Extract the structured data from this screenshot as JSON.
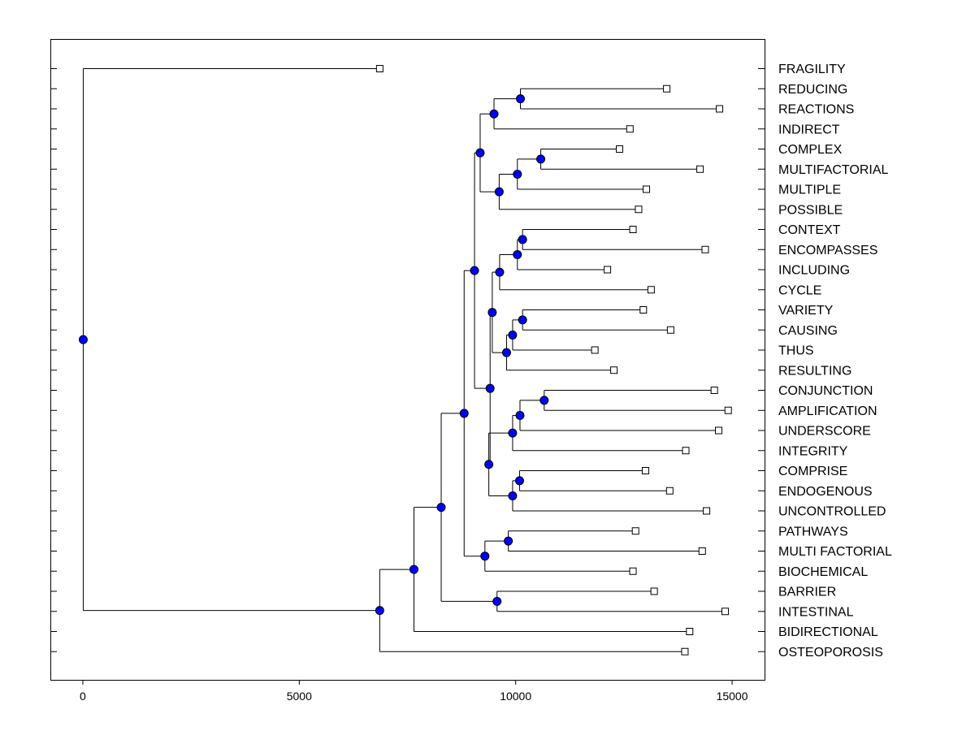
{
  "chart_data": {
    "type": "dendrogram",
    "orientation": "horizontal",
    "xlim": [
      -750,
      15750
    ],
    "xticks": [
      0,
      5000,
      10000,
      15000
    ],
    "colors": {
      "node": "#0000ff",
      "leaf": "#ffffff",
      "line": "#000000"
    },
    "leaves": [
      {
        "label": "FRAGILITY",
        "x": 6850
      },
      {
        "label": "REDUCING",
        "x": 13480
      },
      {
        "label": "REACTIONS",
        "x": 14700
      },
      {
        "label": "INDIRECT",
        "x": 12630
      },
      {
        "label": "COMPLEX",
        "x": 12390
      },
      {
        "label": "MULTIFACTORIAL",
        "x": 14250
      },
      {
        "label": "MULTIPLE",
        "x": 13010
      },
      {
        "label": "POSSIBLE",
        "x": 12830
      },
      {
        "label": "CONTEXT",
        "x": 12700
      },
      {
        "label": "ENCOMPASSES",
        "x": 14370
      },
      {
        "label": "INCLUDING",
        "x": 12110
      },
      {
        "label": "CYCLE",
        "x": 13120
      },
      {
        "label": "VARIETY",
        "x": 12940
      },
      {
        "label": "CAUSING",
        "x": 13570
      },
      {
        "label": "THUS",
        "x": 11820
      },
      {
        "label": "RESULTING",
        "x": 12260
      },
      {
        "label": "CONJUNCTION",
        "x": 14580
      },
      {
        "label": "AMPLIFICATION",
        "x": 14900
      },
      {
        "label": "UNDERSCORE",
        "x": 14680
      },
      {
        "label": "INTEGRITY",
        "x": 13920
      },
      {
        "label": "COMPRISE",
        "x": 12990
      },
      {
        "label": "ENDOGENOUS",
        "x": 13550
      },
      {
        "label": "UNCONTROLLED",
        "x": 14400
      },
      {
        "label": "PATHWAYS",
        "x": 12760
      },
      {
        "label": "MULTI FACTORIAL",
        "x": 14300
      },
      {
        "label": "BIOCHEMICAL",
        "x": 12700
      },
      {
        "label": "BARRIER",
        "x": 13190
      },
      {
        "label": "INTESTINAL",
        "x": 14830
      },
      {
        "label": "BIDIRECTIONAL",
        "x": 14010
      },
      {
        "label": "OSTEOPOROSIS",
        "x": 13900
      }
    ],
    "merges": [
      {
        "id": "n1",
        "x": 10100,
        "children": [
          "REDUCING",
          "REACTIONS"
        ]
      },
      {
        "id": "n2",
        "x": 9490,
        "children": [
          "n1",
          "INDIRECT"
        ]
      },
      {
        "id": "n3",
        "x": 10570,
        "children": [
          "COMPLEX",
          "MULTIFACTORIAL"
        ]
      },
      {
        "id": "n4",
        "x": 10030,
        "children": [
          "n3",
          "MULTIPLE"
        ]
      },
      {
        "id": "n5",
        "x": 9610,
        "children": [
          "n4",
          "POSSIBLE"
        ]
      },
      {
        "id": "n6",
        "x": 9170,
        "children": [
          "n2",
          "n5"
        ]
      },
      {
        "id": "n7",
        "x": 10150,
        "children": [
          "CONTEXT",
          "ENCOMPASSES"
        ]
      },
      {
        "id": "n8",
        "x": 10030,
        "children": [
          "n7",
          "INCLUDING"
        ]
      },
      {
        "id": "n9",
        "x": 9620,
        "children": [
          "n8",
          "CYCLE"
        ]
      },
      {
        "id": "n10",
        "x": 10150,
        "children": [
          "VARIETY",
          "CAUSING"
        ]
      },
      {
        "id": "n11",
        "x": 9920,
        "children": [
          "n10",
          "THUS"
        ]
      },
      {
        "id": "n12",
        "x": 9780,
        "children": [
          "n11",
          "RESULTING"
        ]
      },
      {
        "id": "n13",
        "x": 9450,
        "children": [
          "n9",
          "n12"
        ]
      },
      {
        "id": "n14",
        "x": 10650,
        "children": [
          "CONJUNCTION",
          "AMPLIFICATION"
        ]
      },
      {
        "id": "n15",
        "x": 10090,
        "children": [
          "n14",
          "UNDERSCORE"
        ]
      },
      {
        "id": "n16",
        "x": 9920,
        "children": [
          "n15",
          "INTEGRITY"
        ]
      },
      {
        "id": "n17",
        "x": 10080,
        "children": [
          "COMPRISE",
          "ENDOGENOUS"
        ]
      },
      {
        "id": "n18",
        "x": 9920,
        "children": [
          "n17",
          "UNCONTROLLED"
        ]
      },
      {
        "id": "n19",
        "x": 9370,
        "children": [
          "n16",
          "n18"
        ]
      },
      {
        "id": "n20",
        "x": 9400,
        "children": [
          "n13",
          "n19"
        ]
      },
      {
        "id": "n21",
        "x": 9040,
        "children": [
          "n6",
          "n20"
        ]
      },
      {
        "id": "n22",
        "x": 9820,
        "children": [
          "PATHWAYS",
          "MULTI FACTORIAL"
        ]
      },
      {
        "id": "n23",
        "x": 9280,
        "children": [
          "n22",
          "BIOCHEMICAL"
        ]
      },
      {
        "id": "n24",
        "x": 8800,
        "children": [
          "n21",
          "n23"
        ]
      },
      {
        "id": "n25",
        "x": 9560,
        "children": [
          "BARRIER",
          "INTESTINAL"
        ]
      },
      {
        "id": "n26",
        "x": 8270,
        "children": [
          "n24",
          "n25"
        ]
      },
      {
        "id": "n27",
        "x": 7640,
        "children": [
          "n26",
          "BIDIRECTIONAL"
        ]
      },
      {
        "id": "n28",
        "x": 6850,
        "children": [
          "n27",
          "OSTEOPOROSIS"
        ]
      },
      {
        "id": "n29",
        "x": 0,
        "children": [
          "FRAGILITY",
          "n28"
        ]
      }
    ]
  }
}
